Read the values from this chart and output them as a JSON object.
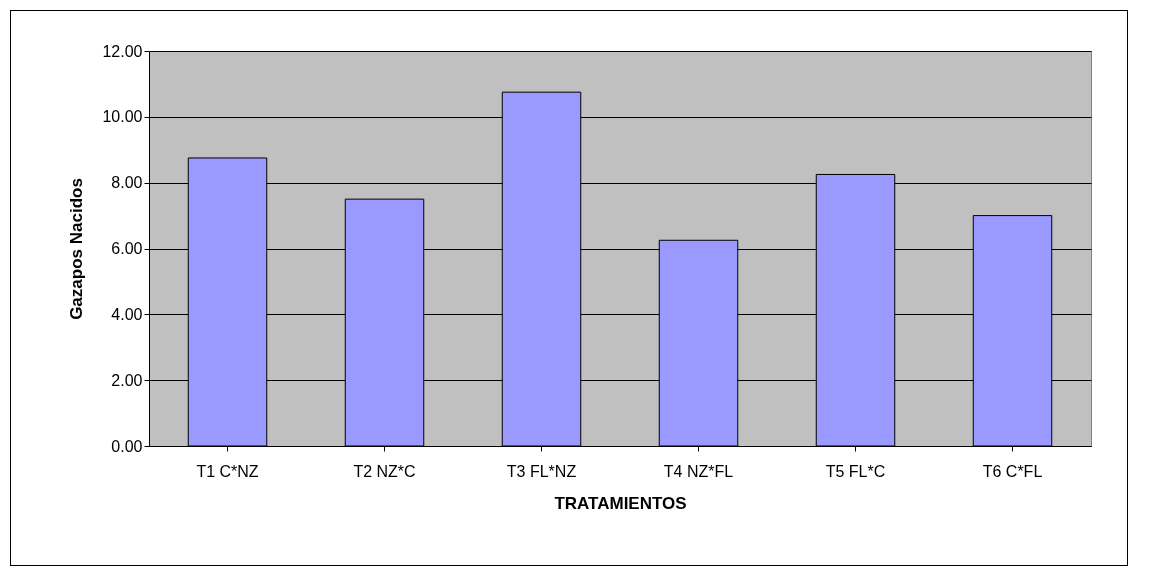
{
  "chart_data": {
    "type": "bar",
    "xlabel": "TRATAMIENTOS",
    "ylabel": "Gazapos Nacidos",
    "categories": [
      "T1 C*NZ",
      "T2 NZ*C",
      "T3 FL*NZ",
      "T4 NZ*FL",
      "T5 FL*C",
      "T6 C*FL"
    ],
    "values": [
      8.75,
      7.5,
      10.75,
      6.25,
      8.25,
      7.0
    ],
    "color": "#9999ff",
    "ylim": [
      0,
      12
    ],
    "yticks": [
      {
        "value": 0,
        "label": "0.00"
      },
      {
        "value": 2,
        "label": "2.00"
      },
      {
        "value": 4,
        "label": "4.00"
      },
      {
        "value": 6,
        "label": "6.00"
      },
      {
        "value": 8,
        "label": "8.00"
      },
      {
        "value": 10,
        "label": "10.00"
      },
      {
        "value": 12,
        "label": "12.00"
      }
    ],
    "grid": "y"
  }
}
